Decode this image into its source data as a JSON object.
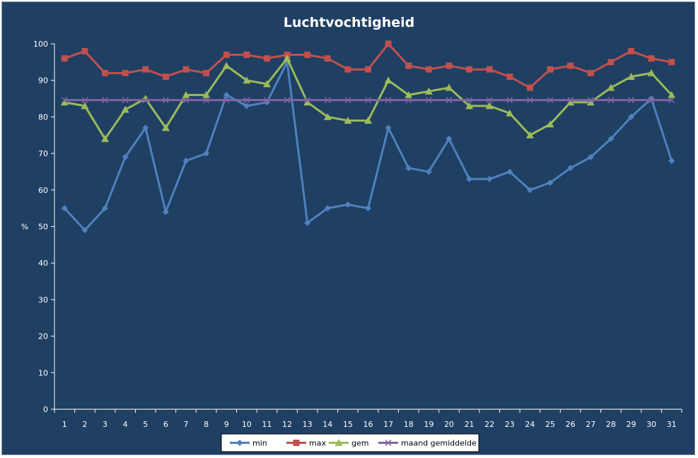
{
  "chart_data": {
    "type": "line",
    "title": "Luchtvochtigheid",
    "xlabel": "",
    "ylabel": "%",
    "ylim": [
      0,
      100
    ],
    "yticks": [
      0,
      10,
      20,
      30,
      40,
      50,
      60,
      70,
      80,
      90,
      100
    ],
    "categories": [
      "1",
      "2",
      "3",
      "4",
      "5",
      "6",
      "7",
      "8",
      "9",
      "10",
      "11",
      "12",
      "13",
      "14",
      "15",
      "16",
      "17",
      "18",
      "19",
      "20",
      "21",
      "22",
      "23",
      "24",
      "25",
      "26",
      "27",
      "28",
      "29",
      "30",
      "31"
    ],
    "grid": false,
    "legend_position": "bottom",
    "series": [
      {
        "name": "min",
        "color": "#4f81bd",
        "marker": "diamond",
        "values": [
          55,
          49,
          55,
          69,
          77,
          54,
          68,
          70,
          86,
          83,
          84,
          95,
          51,
          55,
          56,
          55,
          77,
          66,
          65,
          74,
          63,
          63,
          65,
          60,
          62,
          66,
          69,
          74,
          80,
          85,
          68
        ]
      },
      {
        "name": "max",
        "color": "#c0504d",
        "marker": "square",
        "values": [
          96,
          98,
          92,
          92,
          93,
          91,
          93,
          92,
          97,
          97,
          96,
          97,
          97,
          96,
          93,
          93,
          100,
          94,
          93,
          94,
          93,
          93,
          91,
          88,
          93,
          94,
          92,
          95,
          98,
          96,
          95
        ]
      },
      {
        "name": "gem",
        "color": "#9bbb59",
        "marker": "triangle",
        "values": [
          84,
          83,
          74,
          82,
          85,
          77,
          86,
          86,
          94,
          90,
          89,
          96,
          84,
          80,
          79,
          79,
          90,
          86,
          87,
          88,
          83,
          83,
          81,
          75,
          78,
          84,
          84,
          88,
          91,
          92,
          86
        ]
      },
      {
        "name": "maand gemiddelde",
        "color": "#8064a2",
        "marker": "x",
        "values": [
          84.6,
          84.6,
          84.6,
          84.6,
          84.6,
          84.6,
          84.6,
          84.6,
          84.6,
          84.6,
          84.6,
          84.6,
          84.6,
          84.6,
          84.6,
          84.6,
          84.6,
          84.6,
          84.6,
          84.6,
          84.6,
          84.6,
          84.6,
          84.6,
          84.6,
          84.6,
          84.6,
          84.6,
          84.6,
          84.6,
          84.6
        ]
      }
    ]
  }
}
